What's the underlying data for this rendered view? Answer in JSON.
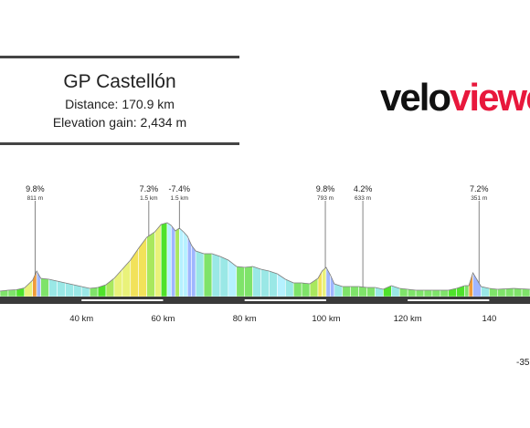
{
  "header": {
    "race_name": "GP Castellón",
    "distance_label": "Distance: 170.9 km",
    "elevation_label": "Elevation gain: 2,434 m"
  },
  "logo": {
    "part1": "velo",
    "part2": "viewe",
    "color_dark": "#111111",
    "color_red": "#e8183c"
  },
  "cut_label": "-35",
  "chart_data": {
    "type": "area",
    "title": "GP Castellón",
    "xlabel": "",
    "ylabel": "",
    "x_unit": "km",
    "xlim": [
      20,
      150
    ],
    "ylim": [
      0,
      1000
    ],
    "x_ticks": [
      40,
      60,
      80,
      100,
      120,
      140
    ],
    "x_tick_labels": [
      "40 km",
      "60 km",
      "80 km",
      "100 km",
      "120 km",
      "140"
    ],
    "grid": false,
    "profile": {
      "x": [
        20,
        22,
        24,
        26,
        28,
        29,
        30,
        32,
        34,
        36,
        38,
        40,
        42,
        44,
        46,
        48,
        50,
        52,
        54,
        56,
        58,
        59.5,
        61,
        62,
        63,
        64,
        65,
        66,
        67,
        68,
        70,
        72,
        74,
        76,
        78,
        80,
        82,
        84,
        86,
        88,
        90,
        92,
        94,
        96,
        98,
        99,
        100,
        101,
        102,
        104,
        106,
        108,
        110,
        112,
        114,
        116,
        118,
        120,
        122,
        124,
        126,
        128,
        130,
        132,
        134,
        135,
        136,
        138,
        140,
        142,
        144,
        146,
        148,
        150
      ],
      "y": [
        60,
        70,
        75,
        95,
        180,
        280,
        200,
        190,
        170,
        150,
        130,
        110,
        90,
        100,
        130,
        200,
        300,
        400,
        530,
        650,
        710,
        790,
        810,
        780,
        720,
        750,
        710,
        660,
        560,
        500,
        470,
        470,
        440,
        400,
        330,
        320,
        330,
        300,
        280,
        250,
        190,
        150,
        150,
        140,
        200,
        280,
        320,
        240,
        140,
        110,
        110,
        110,
        100,
        100,
        80,
        120,
        90,
        80,
        70,
        70,
        70,
        70,
        70,
        90,
        120,
        120,
        260,
        110,
        90,
        80,
        85,
        90,
        85,
        80
      ]
    },
    "climbs": [
      {
        "km": 28.6,
        "gradient": "9.8%",
        "info": "811 m"
      },
      {
        "km": 56.5,
        "gradient": "7.3%",
        "info": "1.5 km"
      },
      {
        "km": 64.0,
        "gradient": "-7.4%",
        "info": "1.5 km"
      },
      {
        "km": 99.8,
        "gradient": "9.8%",
        "info": "793 m"
      },
      {
        "km": 109.0,
        "gradient": "4.2%",
        "info": "633 m"
      },
      {
        "km": 137.5,
        "gradient": "7.2%",
        "info": "351 m"
      }
    ],
    "gradient_colors": {
      "steep_down": "#9fb6ff",
      "down": "#b5f1ff",
      "moderate_down": "#9ae8e6",
      "flat": "#7fe36a",
      "rolling": "#4fe22b",
      "light": "#a9e85e",
      "medium": "#e9f27a",
      "steep": "#f2e25a",
      "very_steep": "#ef9b3a"
    }
  }
}
